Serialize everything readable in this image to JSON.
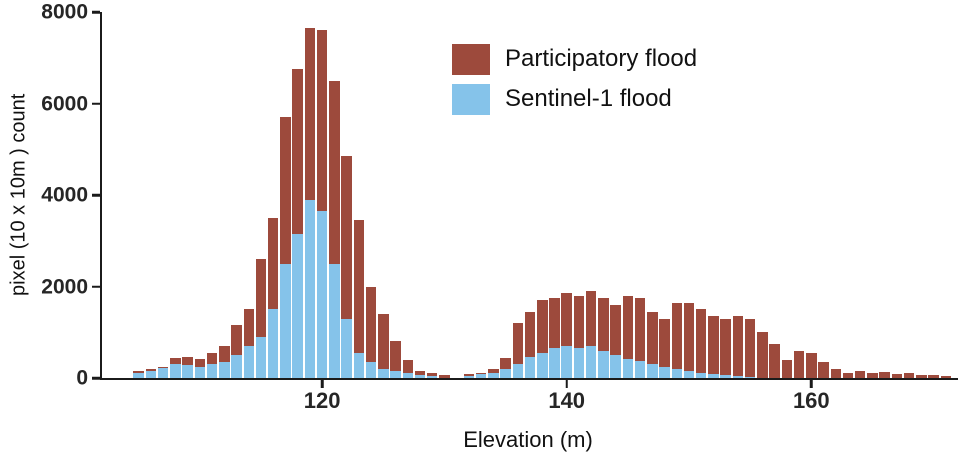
{
  "figure": {
    "background": "#ffffff",
    "axis_color": "#1b1b1b",
    "tick_label_color": "#262626"
  },
  "chart_data": {
    "type": "bar",
    "subtype": "overlaid-histogram",
    "title": "",
    "xlabel": "Elevation (m)",
    "ylabel": "pixel (10 x 10m ) count",
    "xlim": [
      102,
      172
    ],
    "ylim": [
      0,
      8000
    ],
    "x_ticks": [
      120,
      140,
      160
    ],
    "y_ticks": [
      0,
      2000,
      4000,
      6000,
      8000
    ],
    "bin_width": 1,
    "grid": false,
    "legend_position": "inside-top-center",
    "x": [
      105,
      106,
      107,
      108,
      109,
      110,
      111,
      112,
      113,
      114,
      115,
      116,
      117,
      118,
      119,
      120,
      121,
      122,
      123,
      124,
      125,
      126,
      127,
      128,
      129,
      130,
      131,
      132,
      133,
      134,
      135,
      136,
      137,
      138,
      139,
      140,
      141,
      142,
      143,
      144,
      145,
      146,
      147,
      148,
      149,
      150,
      151,
      152,
      153,
      154,
      155,
      156,
      157,
      158,
      159,
      160,
      161,
      162,
      163,
      164,
      165,
      166,
      167,
      168,
      169,
      170,
      171
    ],
    "series": [
      {
        "name": "Participatory flood",
        "slug": "participatory-flood",
        "color": "#9d4a3c",
        "values": [
          150,
          200,
          250,
          430,
          450,
          420,
          550,
          700,
          1150,
          1500,
          2600,
          3500,
          5700,
          6750,
          7650,
          7600,
          6500,
          4850,
          3450,
          2000,
          1400,
          800,
          400,
          150,
          100,
          60,
          0,
          80,
          120,
          200,
          430,
          1200,
          1450,
          1700,
          1750,
          1850,
          1800,
          1900,
          1750,
          1600,
          1800,
          1750,
          1450,
          1300,
          1650,
          1650,
          1500,
          1350,
          1300,
          1350,
          1300,
          1000,
          750,
          400,
          600,
          550,
          350,
          200,
          120,
          150,
          100,
          130,
          90,
          110,
          70,
          60,
          40
        ]
      },
      {
        "name": "Sentinel-1 flood",
        "slug": "sentinel-1-flood",
        "color": "#85c3ea",
        "values": [
          120,
          150,
          220,
          300,
          280,
          250,
          300,
          350,
          500,
          700,
          900,
          1500,
          2500,
          3150,
          3900,
          3650,
          2500,
          1300,
          550,
          350,
          200,
          150,
          100,
          60,
          40,
          0,
          0,
          40,
          80,
          120,
          200,
          300,
          450,
          550,
          650,
          700,
          650,
          700,
          600,
          500,
          420,
          380,
          300,
          250,
          200,
          150,
          120,
          90,
          70,
          50,
          30,
          0,
          0,
          0,
          0,
          0,
          0,
          0,
          0,
          0,
          0,
          0,
          0,
          0,
          0,
          0,
          0
        ]
      }
    ]
  }
}
